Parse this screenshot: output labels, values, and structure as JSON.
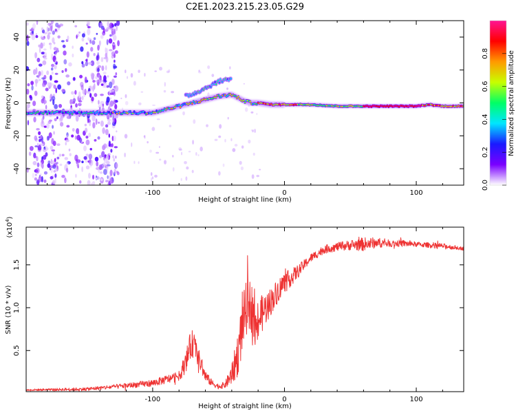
{
  "title": "C2E1.2023.215.23.05.G29",
  "chart_data": [
    {
      "type": "heatmap",
      "xlabel": "Height of straight line (km)",
      "ylabel": "Frequency (Hz)",
      "xlim": [
        -196,
        136
      ],
      "ylim": [
        -50,
        50
      ],
      "xticks": [
        -100,
        0,
        100
      ],
      "xtick_labels": [
        "-100",
        "0",
        "100"
      ],
      "yticks": [
        -40,
        -20,
        0,
        20,
        40
      ],
      "ytick_labels": [
        "-40",
        "-20",
        "0",
        "20",
        "40"
      ],
      "grid": false,
      "colorbar": {
        "label": "Normalized spectral amplitude",
        "range": [
          0,
          1
        ],
        "ticks": [
          0,
          0.2,
          0.4,
          0.6,
          0.8
        ],
        "tick_labels": [
          "0.0",
          "0.2",
          "0.4",
          "0.6",
          "0.8"
        ],
        "colormap": [
          "#ffffff",
          "#7a00ff",
          "#1a1aff",
          "#00e6ff",
          "#00ff66",
          "#c8ff00",
          "#ff9a00",
          "#ff0000",
          "#ff1493"
        ]
      },
      "ridge": {
        "name": "dominant frequency",
        "x": [
          -196,
          -170,
          -150,
          -130,
          -110,
          -100,
          -90,
          -80,
          -70,
          -60,
          -50,
          -40,
          -35,
          -30,
          -25,
          -20,
          -10,
          0,
          20,
          40,
          60,
          80,
          100,
          110,
          120,
          136
        ],
        "y": [
          -6,
          -6,
          -6,
          -6,
          -6,
          -6,
          -4,
          -2,
          0,
          2,
          4,
          5,
          3,
          1,
          0,
          0,
          -1,
          -1,
          -1,
          -2,
          -2,
          -2,
          -2,
          -1,
          -2,
          -2
        ]
      },
      "upper_branch": {
        "x": [
          -75,
          -68,
          -60,
          -55,
          -50,
          -45,
          -40
        ],
        "y": [
          4,
          6,
          9,
          11,
          13,
          14,
          15
        ]
      }
    },
    {
      "type": "line",
      "xlabel": "Height of straight line (km)",
      "ylabel": "SNR (10 * v/v)",
      "y_multiplier": "(x10",
      "y_multiplier_exp": "4",
      "y_multiplier_close": ")",
      "xlim": [
        -196,
        136
      ],
      "ylim": [
        0.02,
        1.94
      ],
      "xticks": [
        -100,
        0,
        100
      ],
      "xtick_labels": [
        "-100",
        "0",
        "100"
      ],
      "yticks": [
        0.5,
        1.0,
        1.5
      ],
      "ytick_labels": [
        "0.5",
        "1.0",
        "1.5"
      ],
      "grid": false,
      "color": "#ee3333",
      "envelope": {
        "x": [
          -196,
          -150,
          -120,
          -100,
          -90,
          -80,
          -75,
          -72,
          -70,
          -68,
          -64,
          -60,
          -55,
          -50,
          -45,
          -40,
          -36,
          -33,
          -30,
          -27,
          -24,
          -22,
          -20,
          -15,
          -10,
          -5,
          0,
          5,
          10,
          15,
          20,
          25,
          30,
          40,
          50,
          60,
          70,
          80,
          90,
          100,
          110,
          120,
          136
        ],
        "y": [
          0.04,
          0.05,
          0.09,
          0.12,
          0.16,
          0.2,
          0.36,
          0.52,
          0.58,
          0.55,
          0.36,
          0.2,
          0.12,
          0.08,
          0.1,
          0.22,
          0.42,
          0.68,
          0.95,
          1.05,
          0.98,
          0.7,
          0.85,
          0.98,
          1.08,
          1.2,
          1.3,
          1.35,
          1.42,
          1.5,
          1.58,
          1.63,
          1.68,
          1.71,
          1.73,
          1.74,
          1.76,
          1.75,
          1.75,
          1.74,
          1.73,
          1.72,
          1.69
        ],
        "noise": [
          0.01,
          0.02,
          0.03,
          0.04,
          0.05,
          0.06,
          0.12,
          0.16,
          0.16,
          0.14,
          0.1,
          0.07,
          0.04,
          0.03,
          0.04,
          0.12,
          0.25,
          0.3,
          0.32,
          0.3,
          0.3,
          0.3,
          0.25,
          0.2,
          0.16,
          0.14,
          0.12,
          0.1,
          0.08,
          0.06,
          0.05,
          0.05,
          0.05,
          0.05,
          0.06,
          0.08,
          0.06,
          0.04,
          0.04,
          0.03,
          0.03,
          0.03,
          0.02
        ]
      }
    }
  ]
}
